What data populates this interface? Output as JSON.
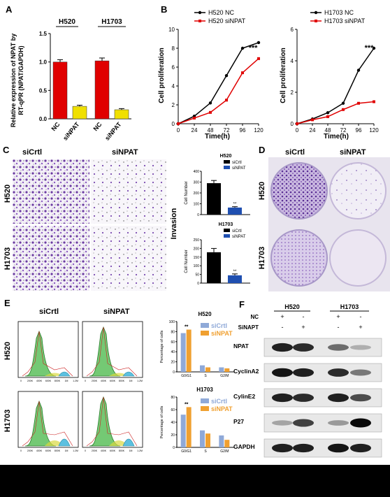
{
  "panels": {
    "A": {
      "label": "A",
      "ylabel_line1": "Relative expression of NPAT by",
      "ylabel_line2": "RT-qPR (NPAT/GAPDH)",
      "groups": [
        "H520",
        "H1703"
      ],
      "x_labels": [
        "NC",
        "siNPAT",
        "NC",
        "siNPAT"
      ],
      "yticks": [
        "0.0",
        "0.5",
        "1.0",
        "1.5"
      ],
      "chart_data": {
        "type": "bar",
        "categories": [
          "H520 NC",
          "H520 siNPAT",
          "H1703 NC",
          "H1703 siNPAT"
        ],
        "values": [
          1.0,
          0.22,
          1.02,
          0.16
        ],
        "errors": [
          0.04,
          0.02,
          0.05,
          0.02
        ],
        "colors": [
          "#e00000",
          "#f0e000",
          "#e00000",
          "#f0e000"
        ],
        "ylim": [
          0,
          1.5
        ]
      }
    },
    "B": {
      "label": "B",
      "ylabel": "Cell proliferation",
      "xlabel": "Time(h)",
      "left": {
        "legend": [
          "H520 NC",
          "H520 siNPAT"
        ],
        "yticks": [
          "0",
          "2",
          "4",
          "6",
          "8",
          "10"
        ],
        "xticks": [
          "0",
          "24",
          "48",
          "72",
          "96",
          "120"
        ],
        "stars": "***",
        "chart_data": {
          "type": "line",
          "x": [
            0,
            24,
            48,
            72,
            96,
            120
          ],
          "ylim": [
            0,
            10
          ],
          "series": [
            {
              "name": "H520 NC",
              "color": "#000000",
              "values": [
                0,
                0.8,
                2.2,
                5.1,
                8.0,
                8.6
              ]
            },
            {
              "name": "H520 siNPAT",
              "color": "#e00000",
              "values": [
                0,
                0.6,
                1.2,
                2.5,
                5.4,
                6.9
              ]
            }
          ]
        }
      },
      "right": {
        "legend": [
          "H1703 NC",
          "H1703 siNPAT"
        ],
        "yticks": [
          "0",
          "2",
          "4",
          "6"
        ],
        "xticks": [
          "0",
          "24",
          "48",
          "72",
          "96",
          "120"
        ],
        "stars": "***",
        "chart_data": {
          "type": "line",
          "x": [
            0,
            24,
            48,
            72,
            96,
            120
          ],
          "ylim": [
            0,
            6
          ],
          "series": [
            {
              "name": "H1703 NC",
              "color": "#000000",
              "values": [
                0,
                0.3,
                0.7,
                1.3,
                3.4,
                4.8
              ]
            },
            {
              "name": "H1703 siNPAT",
              "color": "#e00000",
              "values": [
                0,
                0.25,
                0.45,
                0.9,
                1.3,
                1.4
              ]
            }
          ]
        }
      }
    },
    "C": {
      "label": "C",
      "col_labels": [
        "siCrtl",
        "siNPAT"
      ],
      "row_labels": [
        "H520",
        "H1703"
      ],
      "side_label": "Invasion",
      "ylabel": "Cell Number",
      "charts": [
        {
          "title": "H520",
          "legend": [
            "siCrtl",
            "siNPAT"
          ],
          "yticks": [
            "0",
            "100",
            "200",
            "300",
            "400"
          ],
          "stars": "**",
          "chart_data": {
            "type": "bar",
            "categories": [
              "siCrtl",
              "siNPAT"
            ],
            "values": [
              290,
              65
            ],
            "errors": [
              25,
              8
            ],
            "colors": [
              "#000000",
              "#1f4fb0"
            ],
            "ylim": [
              0,
              400
            ]
          }
        },
        {
          "title": "H1703",
          "legend": [
            "siCrtl",
            "siNPAT"
          ],
          "yticks": [
            "0",
            "50",
            "100",
            "150",
            "200",
            "250"
          ],
          "stars": "**",
          "chart_data": {
            "type": "bar",
            "categories": [
              "siCrtl",
              "siNPAT"
            ],
            "values": [
              178,
              45
            ],
            "errors": [
              22,
              8
            ],
            "colors": [
              "#000000",
              "#1f4fb0"
            ],
            "ylim": [
              0,
              250
            ]
          }
        }
      ]
    },
    "D": {
      "label": "D",
      "col_labels": [
        "siCrtl",
        "siNPAT"
      ],
      "row_labels": [
        "H520",
        "H1703"
      ]
    },
    "E": {
      "label": "E",
      "col_labels": [
        "siCrtl",
        "siNPAT"
      ],
      "row_labels": [
        "H520",
        "H1703"
      ],
      "hist_xticks": [
        "0",
        "200K",
        "400K",
        "600K",
        "800K",
        "1M",
        "1.2M"
      ],
      "ylabel": "Percentage of cells",
      "charts": [
        {
          "title": "H520",
          "legend": [
            "siCrtl",
            "siNPAT"
          ],
          "stars": "**",
          "yticks": [
            "0",
            "20",
            "40",
            "60",
            "80",
            "100"
          ],
          "chart_data": {
            "type": "bar",
            "categories": [
              "G0/G1",
              "S",
              "G2/M"
            ],
            "ylim": [
              0,
              100
            ],
            "series": [
              {
                "name": "siCrtl",
                "color": "#8fa9d8",
                "values": [
                  77,
                  13,
                  9
                ]
              },
              {
                "name": "siNPAT",
                "color": "#f0a030",
                "values": [
                  84,
                  9,
                  7
                ]
              }
            ]
          }
        },
        {
          "title": "H1703",
          "legend": [
            "siCrtl",
            "siNPAT"
          ],
          "stars": "**",
          "yticks": [
            "0",
            "20",
            "40",
            "60",
            "80"
          ],
          "chart_data": {
            "type": "bar",
            "categories": [
              "G0/G1",
              "S",
              "G2/M"
            ],
            "ylim": [
              0,
              80
            ],
            "series": [
              {
                "name": "siCrtl",
                "color": "#8fa9d8",
                "values": [
                  52,
                  27,
                  19
                ]
              },
              {
                "name": "siNPAT",
                "color": "#f0a030",
                "values": [
                  64,
                  22,
                  12
                ]
              }
            ]
          }
        }
      ]
    },
    "F": {
      "label": "F",
      "cell_lines": [
        "H520",
        "H1703"
      ],
      "row_nc": "NC",
      "row_si": "SiNAPT",
      "nc_marks": [
        "+",
        "-",
        "+",
        "-"
      ],
      "si_marks": [
        "-",
        "+",
        "-",
        "+"
      ],
      "proteins": [
        "NPAT",
        "CyclinA2",
        "CylinE2",
        "P27",
        "GAPDH"
      ],
      "band_intensity": [
        [
          0.9,
          0.85,
          0.55,
          0.25
        ],
        [
          0.95,
          0.9,
          0.85,
          0.5
        ],
        [
          0.9,
          0.85,
          0.9,
          0.7
        ],
        [
          0.3,
          0.75,
          0.35,
          1.0
        ],
        [
          0.9,
          0.9,
          0.95,
          0.9
        ]
      ]
    }
  }
}
